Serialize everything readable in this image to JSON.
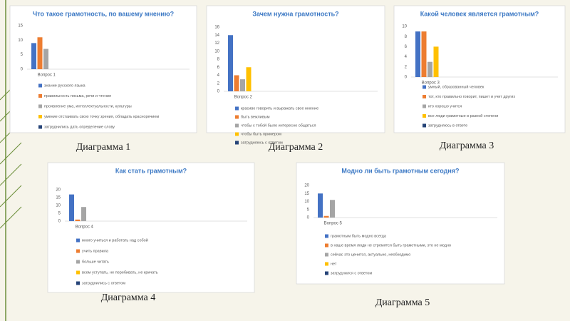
{
  "chart_data": [
    {
      "type": "bar",
      "title": "Что такое грамотность, по вашему мнению?",
      "caption": "Диаграмма 1",
      "categories": [
        "Вопрос 1"
      ],
      "ylim": [
        0,
        15
      ],
      "yticks": [
        0,
        5,
        10,
        15
      ],
      "grid": false,
      "legend": "bottom",
      "series": [
        {
          "name": "знание русского языка",
          "color": "#4472c4",
          "values": [
            9
          ]
        },
        {
          "name": "правильность письма, речи и чтения",
          "color": "#ed7d31",
          "values": [
            11
          ]
        },
        {
          "name": "проявление ума, интеллектуальности, культуры",
          "color": "#a5a5a5",
          "values": [
            7
          ]
        },
        {
          "name": "умение отстаивать свою точку зрения, обладать красноречием",
          "color": "#ffc000",
          "values": [
            0
          ]
        },
        {
          "name": "затруднились дать определение слову",
          "color": "#264478",
          "values": [
            0
          ]
        }
      ]
    },
    {
      "type": "bar",
      "title": "Зачем нужна грамотность?",
      "caption": "Диаграмма 2",
      "categories": [
        "Вопрос 2"
      ],
      "ylim": [
        0,
        16
      ],
      "yticks": [
        0,
        2,
        4,
        6,
        8,
        10,
        12,
        14,
        16
      ],
      "grid": false,
      "legend": "bottom",
      "series": [
        {
          "name": "красиво говорить и выражать свое мнение",
          "color": "#4472c4",
          "values": [
            14
          ]
        },
        {
          "name": "быть вежливым",
          "color": "#ed7d31",
          "values": [
            4
          ]
        },
        {
          "name": "чтобы с тобой было интересно общаться",
          "color": "#a5a5a5",
          "values": [
            3
          ]
        },
        {
          "name": "чтобы быть примером",
          "color": "#ffc000",
          "values": [
            6
          ]
        },
        {
          "name": "затрудняюсь с ответом",
          "color": "#264478",
          "values": [
            0
          ]
        }
      ]
    },
    {
      "type": "bar",
      "title": "Какой человек является грамотным?",
      "caption": "Диаграмма 3",
      "categories": [
        "Вопрос 3"
      ],
      "ylim": [
        0,
        10
      ],
      "yticks": [
        0,
        2,
        4,
        6,
        8,
        10
      ],
      "grid": false,
      "legend": "bottom",
      "series": [
        {
          "name": "умный, образованный человек",
          "color": "#4472c4",
          "values": [
            9
          ]
        },
        {
          "name": "тот, кто правильно говорит, пишет и учит других",
          "color": "#ed7d31",
          "values": [
            9
          ]
        },
        {
          "name": "кто хорошо учится",
          "color": "#a5a5a5",
          "values": [
            3
          ]
        },
        {
          "name": "все люди грамотные в разной степени",
          "color": "#ffc000",
          "values": [
            6
          ]
        },
        {
          "name": "затрудняюсь в ответе",
          "color": "#264478",
          "values": [
            0
          ]
        }
      ]
    },
    {
      "type": "bar",
      "title": "Как стать грамотным?",
      "caption": "Диаграмма 4",
      "categories": [
        "Вопрос 4"
      ],
      "ylim": [
        0,
        20
      ],
      "yticks": [
        0,
        5,
        10,
        15,
        20
      ],
      "grid": false,
      "legend": "bottom",
      "series": [
        {
          "name": "много учиться и работать над собой",
          "color": "#4472c4",
          "values": [
            17
          ]
        },
        {
          "name": "учить правила",
          "color": "#ed7d31",
          "values": [
            1
          ]
        },
        {
          "name": "больше читать",
          "color": "#a5a5a5",
          "values": [
            9
          ]
        },
        {
          "name": "всем уступать, не перебивать, не кричать",
          "color": "#ffc000",
          "values": [
            0
          ]
        },
        {
          "name": "затруднились с ответом",
          "color": "#264478",
          "values": [
            0
          ]
        }
      ]
    },
    {
      "type": "bar",
      "title": "Модно ли быть грамотным сегодня?",
      "caption": "Диаграмма 5",
      "categories": [
        "Вопрос 5"
      ],
      "ylim": [
        0,
        20
      ],
      "yticks": [
        0,
        5,
        10,
        15,
        20
      ],
      "grid": false,
      "legend": "bottom",
      "series": [
        {
          "name": "грамотным быть модно всегда",
          "color": "#4472c4",
          "values": [
            15
          ]
        },
        {
          "name": "в наше время люди не стремятся быть грамотными, это не модно",
          "color": "#ed7d31",
          "values": [
            1
          ]
        },
        {
          "name": "сейчас это ценится, актуально,   необходимо",
          "color": "#a5a5a5",
          "values": [
            11
          ]
        },
        {
          "name": "нет",
          "color": "#ffc000",
          "values": [
            0
          ]
        },
        {
          "name": "затруднился с ответом",
          "color": "#264478",
          "values": [
            0
          ]
        }
      ]
    }
  ]
}
